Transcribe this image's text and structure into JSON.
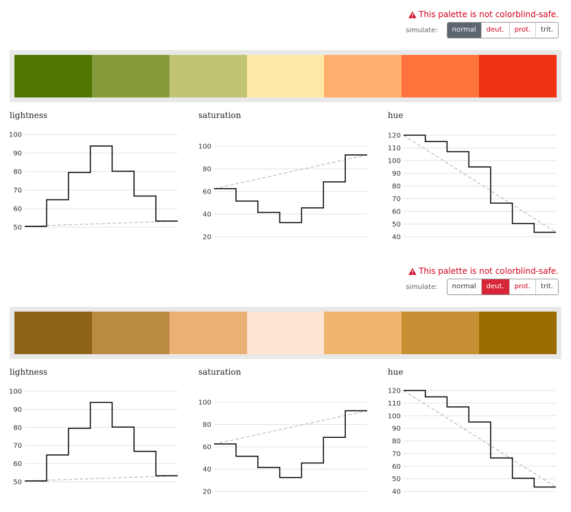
{
  "panels": [
    {
      "warning": "This palette is not colorblind-safe.",
      "simulate_label": "simulate:",
      "buttons": [
        "normal",
        "deut.",
        "prot.",
        "trit."
      ],
      "active_button": "normal",
      "active_color": "#5d6570",
      "swatches": [
        "#4f7600",
        "#859a3a",
        "#c1c472",
        "#ffe9a7",
        "#ffb06e",
        "#ff743d",
        "#ee3111"
      ]
    },
    {
      "warning": "This palette is not colorblind-safe.",
      "simulate_label": "simulate:",
      "buttons": [
        "normal",
        "deut.",
        "prot.",
        "trit."
      ],
      "active_button": "deut.",
      "active_color": "#d72638",
      "swatches": [
        "#8e6316",
        "#bb8b41",
        "#ebb074",
        "#ffe5d4",
        "#f0b56c",
        "#c68f33",
        "#9a6c00"
      ]
    }
  ],
  "chart_data": [
    {
      "type": "line",
      "title": "lightness",
      "step": true,
      "x": [
        1,
        2,
        3,
        4,
        5,
        6,
        7
      ],
      "values": [
        50.5,
        64.8,
        79.5,
        93.8,
        80.2,
        66.8,
        53.3
      ],
      "trend": [
        50.5,
        53.3
      ],
      "yticks": [
        50,
        60,
        70,
        80,
        90,
        100
      ],
      "ylim": [
        50,
        100
      ],
      "grid": true
    },
    {
      "type": "line",
      "title": "saturation",
      "step": true,
      "x": [
        1,
        2,
        3,
        4,
        5,
        6,
        7
      ],
      "values": [
        62.5,
        51.5,
        41.5,
        32.5,
        45.5,
        68.5,
        92.3
      ],
      "trend": [
        62.5,
        92.3
      ],
      "yticks": [
        20,
        40,
        60,
        80,
        100
      ],
      "ylim": [
        20,
        100
      ],
      "grid": true
    },
    {
      "type": "line",
      "title": "hue",
      "step": true,
      "x": [
        1,
        2,
        3,
        4,
        5,
        6,
        7
      ],
      "values": [
        120,
        115,
        107,
        95,
        66.5,
        50.5,
        43.5
      ],
      "trend": [
        120,
        43.5
      ],
      "yticks": [
        40,
        50,
        60,
        70,
        80,
        90,
        100,
        110,
        120
      ],
      "ylim": [
        40,
        120
      ],
      "grid": true
    },
    {
      "type": "line",
      "title": "lightness",
      "step": true,
      "x": [
        1,
        2,
        3,
        4,
        5,
        6,
        7
      ],
      "values": [
        50.5,
        64.8,
        79.5,
        93.8,
        80.2,
        66.8,
        53.3
      ],
      "trend": [
        50.5,
        53.3
      ],
      "yticks": [
        50,
        60,
        70,
        80,
        90,
        100
      ],
      "ylim": [
        50,
        100
      ],
      "grid": true
    },
    {
      "type": "line",
      "title": "saturation",
      "step": true,
      "x": [
        1,
        2,
        3,
        4,
        5,
        6,
        7
      ],
      "values": [
        62.5,
        51.5,
        41.5,
        32.5,
        45.5,
        68.5,
        92.3
      ],
      "trend": [
        62.5,
        92.3
      ],
      "yticks": [
        20,
        40,
        60,
        80,
        100
      ],
      "ylim": [
        20,
        100
      ],
      "grid": true
    },
    {
      "type": "line",
      "title": "hue",
      "step": true,
      "x": [
        1,
        2,
        3,
        4,
        5,
        6,
        7
      ],
      "values": [
        120,
        115,
        107,
        95,
        66.5,
        50.5,
        43.5
      ],
      "trend": [
        120,
        43.5
      ],
      "yticks": [
        40,
        50,
        60,
        70,
        80,
        90,
        100,
        110,
        120
      ],
      "ylim": [
        40,
        120
      ],
      "grid": true
    }
  ]
}
